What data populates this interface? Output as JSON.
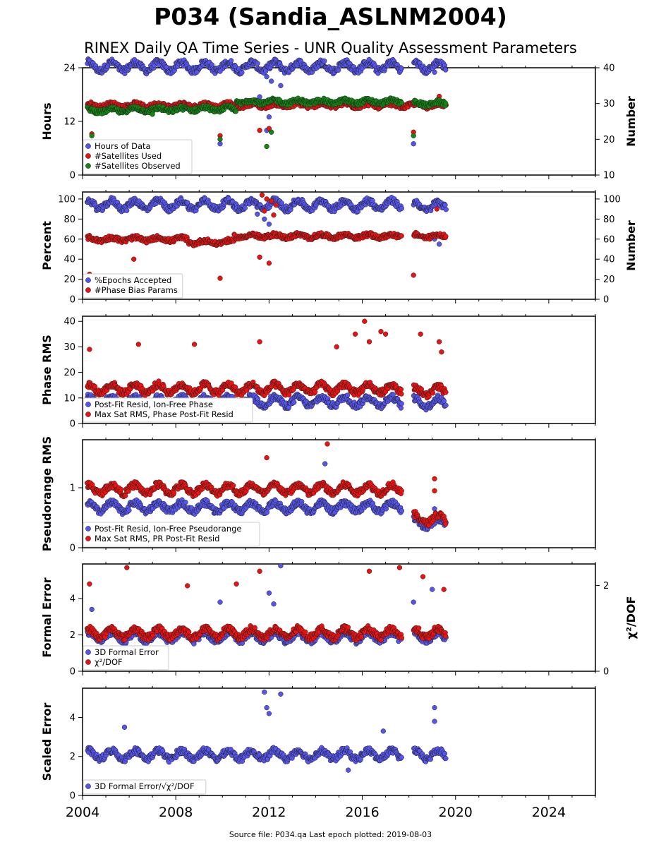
{
  "title": "P034 (Sandia_ASLNM2004)",
  "subtitle": "RINEX Daily QA Time Series - UNR Quality Assessment Parameters",
  "source_note": "Source file: P034.qa Last epoch plotted: 2019-08-03",
  "colors": {
    "blue": "#5555ee",
    "red": "#ee1111",
    "green": "#118811",
    "frame": "#000000"
  },
  "chart_data": [
    {
      "type": "scatter",
      "ylabel": "Hours",
      "y2label": "Number",
      "ylim": [
        0,
        24
      ],
      "yticks": [
        0,
        12,
        24
      ],
      "y2lim": [
        10,
        40
      ],
      "y2ticks": [
        10,
        20,
        30,
        40
      ],
      "xlim": [
        2004.0,
        2026.0
      ],
      "xticks": [
        2004,
        2008,
        2012,
        2016,
        2020,
        2024
      ],
      "legend": "lower-left",
      "series": [
        {
          "name": "Hours of Data",
          "color": "#5555ee",
          "axis": "left",
          "segments": [
            [
              2004.2,
              2017.7,
              23.9
            ],
            [
              2018.2,
              2019.6,
              23.9
            ]
          ],
          "outliers": [
            [
              2008.9,
              23.0
            ],
            [
              2009.9,
              23.2
            ],
            [
              2011.9,
              22.0
            ],
            [
              2012.1,
              21.0
            ],
            [
              2012.5,
              20.0
            ],
            [
              2011.6,
              17.5
            ],
            [
              2012.0,
              13.0
            ],
            [
              2009.9,
              7.0
            ],
            [
              2018.2,
              7.0
            ],
            [
              2011.9,
              10.0
            ],
            [
              2019.1,
              23.0
            ]
          ]
        },
        {
          "name": "#Satellites Used",
          "color": "#ee1111",
          "axis": "right",
          "segments": [
            [
              2004.2,
              2019.6,
              29.5
            ]
          ],
          "outliers": [
            [
              2004.4,
              21.5
            ],
            [
              2009.9,
              21.0
            ],
            [
              2011.6,
              22.5
            ],
            [
              2012.0,
              23.0
            ],
            [
              2018.2,
              22.0
            ],
            [
              2019.3,
              32.0
            ]
          ]
        },
        {
          "name": "#Satellites Observed",
          "color": "#118811",
          "axis": "right",
          "segments": [
            [
              2004.2,
              2005.8,
              28.0
            ],
            [
              2005.8,
              2008.5,
              28.3
            ],
            [
              2008.5,
              2010.6,
              28.5
            ],
            [
              2010.6,
              2017.7,
              30.5
            ],
            [
              2018.2,
              2019.6,
              30.0
            ]
          ],
          "outliers": [
            [
              2004.4,
              21.0
            ],
            [
              2009.9,
              20.0
            ],
            [
              2011.9,
              18.0
            ],
            [
              2012.1,
              22.0
            ],
            [
              2018.2,
              21.0
            ],
            [
              2007.0,
              27.0
            ]
          ]
        }
      ]
    },
    {
      "type": "scatter",
      "ylabel": "Percent",
      "y2label": "Number",
      "ylim": [
        0,
        107
      ],
      "yticks": [
        0,
        20,
        40,
        60,
        80,
        100
      ],
      "y2lim": [
        0,
        107
      ],
      "y2ticks": [
        0,
        20,
        40,
        60,
        80,
        100
      ],
      "xlim": [
        2004.0,
        2026.0
      ],
      "xticks": [
        2004,
        2008,
        2012,
        2016,
        2020,
        2024
      ],
      "legend": "lower-left",
      "series": [
        {
          "name": "%Epochs Accepted",
          "color": "#5555ee",
          "axis": "left",
          "segments": [
            [
              2004.2,
              2017.7,
              92.5
            ],
            [
              2018.2,
              2019.6,
              91.0
            ]
          ],
          "outliers": [
            [
              2011.8,
              80
            ],
            [
              2012.0,
              75
            ],
            [
              2011.5,
              85
            ],
            [
              2019.3,
              55
            ],
            [
              2019.1,
              60
            ]
          ]
        },
        {
          "name": "#Phase Bias Params",
          "color": "#ee1111",
          "axis": "right",
          "segments": [
            [
              2004.2,
              2008.5,
              60.0
            ],
            [
              2008.5,
              2010.5,
              57.0
            ],
            [
              2010.5,
              2017.7,
              63.0
            ],
            [
              2018.2,
              2019.6,
              63.0
            ]
          ],
          "outliers": [
            [
              2004.3,
              25
            ],
            [
              2009.9,
              21
            ],
            [
              2006.2,
              40
            ],
            [
              2018.2,
              24
            ],
            [
              2011.7,
              104
            ],
            [
              2011.9,
              100
            ],
            [
              2012.1,
              98
            ],
            [
              2012.3,
              94
            ],
            [
              2011.6,
              42
            ],
            [
              2012.0,
              36
            ],
            [
              2011.8,
              88
            ],
            [
              2012.2,
              84
            ],
            [
              2019.2,
              90
            ]
          ]
        }
      ]
    },
    {
      "type": "scatter",
      "ylabel": "Phase RMS",
      "y2label": "",
      "ylim": [
        0,
        42
      ],
      "yticks": [
        0,
        10,
        20,
        30,
        40
      ],
      "xlim": [
        2004.0,
        2026.0
      ],
      "xticks": [
        2004,
        2008,
        2012,
        2016,
        2020,
        2024
      ],
      "legend": "lower-left",
      "series": [
        {
          "name": "Post-Fit Resid, Ion-Free Phase",
          "color": "#5555ee",
          "axis": "left",
          "segments": [
            [
              2004.2,
              2017.7,
              8.0
            ],
            [
              2018.2,
              2019.6,
              7.5
            ]
          ],
          "outliers": []
        },
        {
          "name": "Max Sat RMS, Phase Post-Fit Resid",
          "color": "#ee1111",
          "axis": "left",
          "segments": [
            [
              2004.2,
              2017.7,
              13.0
            ],
            [
              2018.2,
              2019.6,
              12.0
            ]
          ],
          "outliers": [
            [
              2004.3,
              29
            ],
            [
              2006.4,
              31
            ],
            [
              2008.8,
              31
            ],
            [
              2011.6,
              32
            ],
            [
              2015.7,
              35
            ],
            [
              2016.1,
              40
            ],
            [
              2016.8,
              36
            ],
            [
              2017.0,
              35
            ],
            [
              2018.5,
              35
            ],
            [
              2019.3,
              32
            ],
            [
              2016.3,
              32
            ],
            [
              2014.9,
              30
            ],
            [
              2019.4,
              28
            ]
          ]
        }
      ]
    },
    {
      "type": "scatter",
      "ylabel": "Pseudorange RMS",
      "y2label": "",
      "ylim": [
        0,
        1.8
      ],
      "yticks": [
        0,
        1
      ],
      "xlim": [
        2004.0,
        2026.0
      ],
      "xticks": [
        2004,
        2008,
        2012,
        2016,
        2020,
        2024
      ],
      "legend": "lower-left",
      "series": [
        {
          "name": "Post-Fit Resid, Ion-Free Pseudorange",
          "color": "#5555ee",
          "axis": "left",
          "segments": [
            [
              2004.2,
              2017.7,
              0.65
            ],
            [
              2018.2,
              2019.6,
              0.38
            ]
          ],
          "outliers": [
            [
              2014.4,
              1.4
            ],
            [
              2019.1,
              0.65
            ]
          ]
        },
        {
          "name": "Max Sat RMS, PR Post-Fit Resid",
          "color": "#ee1111",
          "axis": "left",
          "segments": [
            [
              2004.2,
              2017.7,
              0.95
            ],
            [
              2018.2,
              2019.6,
              0.45
            ]
          ],
          "outliers": [
            [
              2014.5,
              1.73
            ],
            [
              2011.9,
              1.5
            ],
            [
              2019.1,
              1.15
            ],
            [
              2019.1,
              0.95
            ]
          ]
        }
      ]
    },
    {
      "type": "scatter",
      "ylabel": "Formal Error",
      "y2label": "χ²/DOF",
      "ylim": [
        0,
        5.9
      ],
      "yticks": [
        0,
        2,
        4
      ],
      "y2lim": [
        0,
        2.5
      ],
      "y2ticks": [
        0,
        2
      ],
      "xlim": [
        2004.0,
        2026.0
      ],
      "xticks": [
        2004,
        2008,
        2012,
        2016,
        2020,
        2024
      ],
      "legend": "lower-left",
      "series": [
        {
          "name": "3D Formal Error",
          "color": "#5555ee",
          "axis": "left",
          "segments": [
            [
              2004.2,
              2017.7,
              1.8
            ],
            [
              2018.2,
              2019.6,
              1.8
            ]
          ],
          "outliers": [
            [
              2012.0,
              4.3
            ],
            [
              2012.2,
              3.7
            ],
            [
              2012.5,
              5.8
            ],
            [
              2019.0,
              4.5
            ],
            [
              2004.4,
              3.4
            ],
            [
              2009.9,
              3.8
            ],
            [
              2018.2,
              3.8
            ]
          ]
        },
        {
          "name": "χ²/DOF",
          "color": "#ee1111",
          "axis": "left",
          "segments": [
            [
              2004.2,
              2017.7,
              2.0
            ],
            [
              2018.2,
              2019.6,
              2.0
            ]
          ],
          "outliers": [
            [
              2005.9,
              5.7
            ],
            [
              2011.6,
              5.5
            ],
            [
              2016.3,
              5.5
            ],
            [
              2017.6,
              5.7
            ],
            [
              2018.6,
              5.2
            ],
            [
              2004.3,
              4.8
            ],
            [
              2019.5,
              4.5
            ],
            [
              2008.5,
              4.7
            ],
            [
              2010.6,
              4.8
            ]
          ]
        }
      ]
    },
    {
      "type": "scatter",
      "ylabel": "Scaled Error",
      "y2label": "",
      "ylim": [
        0,
        5.5
      ],
      "yticks": [
        0,
        2,
        4
      ],
      "xlim": [
        2004.0,
        2026.0
      ],
      "xticks": [
        2004,
        2008,
        2012,
        2016,
        2020,
        2024
      ],
      "legend": "lower-left",
      "series": [
        {
          "name": "3D Formal Error/√χ²/DOF",
          "color": "#5555ee",
          "axis": "left",
          "segments": [
            [
              2004.2,
              2017.7,
              2.0
            ],
            [
              2018.2,
              2019.6,
              2.0
            ]
          ],
          "outliers": [
            [
              2011.8,
              5.3
            ],
            [
              2012.5,
              5.2
            ],
            [
              2011.9,
              4.5
            ],
            [
              2012.0,
              4.2
            ],
            [
              2019.1,
              4.5
            ],
            [
              2019.1,
              3.8
            ],
            [
              2005.8,
              3.5
            ],
            [
              2015.4,
              1.3
            ],
            [
              2016.9,
              3.3
            ]
          ]
        }
      ]
    }
  ]
}
